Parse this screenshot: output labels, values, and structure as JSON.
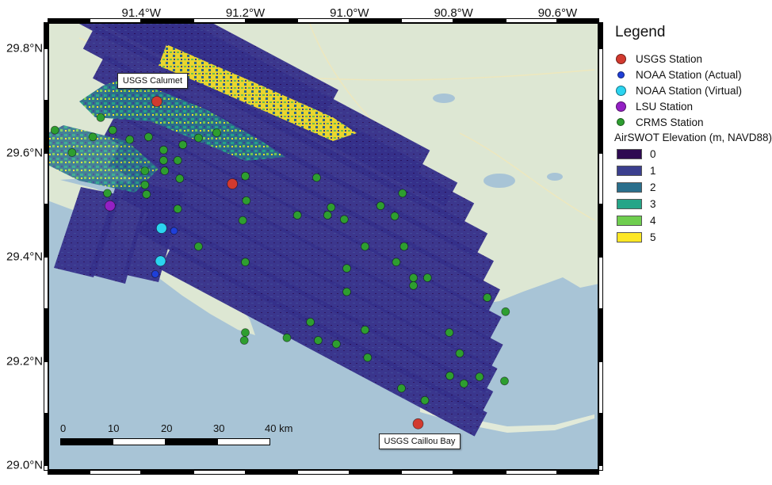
{
  "map": {
    "lon_labels": [
      {
        "text": "91.4°W",
        "lon": -91.4
      },
      {
        "text": "91.2°W",
        "lon": -91.2
      },
      {
        "text": "91.0°W",
        "lon": -91.0
      },
      {
        "text": "90.8°W",
        "lon": -90.8
      },
      {
        "text": "90.6°W",
        "lon": -90.6
      }
    ],
    "lat_labels": [
      {
        "text": "29.8°N",
        "lat": 29.8
      },
      {
        "text": "29.6°N",
        "lat": 29.6
      },
      {
        "text": "29.4°N",
        "lat": 29.4
      },
      {
        "text": "29.2°N",
        "lat": 29.2
      },
      {
        "text": "29.0°N",
        "lat": 29.0
      }
    ],
    "extent": {
      "lon_min": -91.58,
      "lon_max": -90.52,
      "lat_min": 28.99,
      "lat_max": 29.85
    },
    "colors": {
      "water": "#a8c4d6",
      "land": "#dde7d3",
      "frame": "#000000",
      "elevation": [
        "#2e0a52",
        "#3b3f8e",
        "#2a6f8c",
        "#25a588",
        "#6fce4f",
        "#fde725"
      ]
    }
  },
  "legend": {
    "title": "Legend",
    "stations": [
      {
        "label": "USGS Station",
        "color": "#d23a2f",
        "size": 13
      },
      {
        "label": "NOAA Station (Actual)",
        "color": "#1f3fd8",
        "size": 9
      },
      {
        "label": "NOAA Station (Virtual)",
        "color": "#2bd4f0",
        "size": 13
      },
      {
        "label": "LSU Station",
        "color": "#9420c4",
        "size": 13
      },
      {
        "label": "CRMS Station",
        "color": "#2e9e30",
        "size": 10
      }
    ],
    "elevation_title": "AirSWOT Elevation (m, NAVD88)",
    "elevation_classes": [
      {
        "label": "0",
        "color": "#2e0a52"
      },
      {
        "label": "1",
        "color": "#3b3f8e"
      },
      {
        "label": "2",
        "color": "#2a6f8c"
      },
      {
        "label": "3",
        "color": "#25a588"
      },
      {
        "label": "4",
        "color": "#6fce4f"
      },
      {
        "label": "5",
        "color": "#fde725"
      }
    ]
  },
  "labels": {
    "usgs_calumet": {
      "text": "USGS Calumet",
      "lon": -91.37,
      "lat": 29.698
    },
    "usgs_caillou": {
      "text": "USGS Caillou Bay",
      "lon": -90.868,
      "lat": 29.08
    }
  },
  "scalebar": {
    "ticks": [
      "0",
      "10",
      "20",
      "30",
      "40 km"
    ]
  },
  "stations": {
    "usgs": [
      [
        -91.37,
        29.698
      ],
      [
        -91.225,
        29.54
      ],
      [
        -90.868,
        29.08
      ]
    ],
    "noaa_actual": [
      [
        -91.337,
        29.45
      ],
      [
        -91.373,
        29.367
      ]
    ],
    "noaa_virtual": [
      [
        -91.361,
        29.455
      ],
      [
        -91.363,
        29.392
      ]
    ],
    "lsu": [
      [
        -91.46,
        29.498
      ]
    ],
    "crms": [
      [
        -91.566,
        29.643
      ],
      [
        -91.533,
        29.6
      ],
      [
        -91.493,
        29.63
      ],
      [
        -91.478,
        29.667
      ],
      [
        -91.455,
        29.643
      ],
      [
        -91.422,
        29.625
      ],
      [
        -91.386,
        29.63
      ],
      [
        -91.357,
        29.605
      ],
      [
        -91.32,
        29.615
      ],
      [
        -91.29,
        29.628
      ],
      [
        -91.255,
        29.638
      ],
      [
        -91.357,
        29.585
      ],
      [
        -91.33,
        29.585
      ],
      [
        -91.355,
        29.565
      ],
      [
        -91.393,
        29.565
      ],
      [
        -91.393,
        29.538
      ],
      [
        -91.39,
        29.52
      ],
      [
        -91.326,
        29.55
      ],
      [
        -91.465,
        29.522
      ],
      [
        -91.198,
        29.508
      ],
      [
        -91.33,
        29.492
      ],
      [
        -91.205,
        29.47
      ],
      [
        -91.1,
        29.48
      ],
      [
        -91.035,
        29.495
      ],
      [
        -91.042,
        29.48
      ],
      [
        -91.01,
        29.472
      ],
      [
        -90.94,
        29.498
      ],
      [
        -90.913,
        29.478
      ],
      [
        -90.898,
        29.522
      ],
      [
        -91.2,
        29.555
      ],
      [
        -91.063,
        29.552
      ],
      [
        -90.97,
        29.42
      ],
      [
        -90.895,
        29.42
      ],
      [
        -90.91,
        29.39
      ],
      [
        -90.877,
        29.36
      ],
      [
        -90.877,
        29.345
      ],
      [
        -90.85,
        29.36
      ],
      [
        -91.005,
        29.378
      ],
      [
        -91.005,
        29.333
      ],
      [
        -91.2,
        29.39
      ],
      [
        -91.29,
        29.42
      ],
      [
        -90.735,
        29.322
      ],
      [
        -90.7,
        29.295
      ],
      [
        -91.075,
        29.275
      ],
      [
        -90.97,
        29.26
      ],
      [
        -91.2,
        29.255
      ],
      [
        -91.202,
        29.24
      ],
      [
        -91.12,
        29.245
      ],
      [
        -91.06,
        29.24
      ],
      [
        -91.025,
        29.233
      ],
      [
        -90.965,
        29.207
      ],
      [
        -90.808,
        29.255
      ],
      [
        -90.788,
        29.215
      ],
      [
        -90.807,
        29.172
      ],
      [
        -90.78,
        29.157
      ],
      [
        -90.75,
        29.17
      ],
      [
        -90.702,
        29.162
      ],
      [
        -90.9,
        29.148
      ],
      [
        -90.855,
        29.125
      ]
    ]
  },
  "chart_data": {
    "type": "scatter",
    "title": "",
    "xlabel": "",
    "ylabel": "",
    "series": [
      {
        "name": "USGS Station",
        "values": [
          [
            -91.37,
            29.698
          ],
          [
            -91.225,
            29.54
          ],
          [
            -90.868,
            29.08
          ]
        ]
      },
      {
        "name": "NOAA Station (Actual)",
        "values": [
          [
            -91.337,
            29.45
          ],
          [
            -91.373,
            29.367
          ]
        ]
      },
      {
        "name": "NOAA Station (Virtual)",
        "values": [
          [
            -91.361,
            29.455
          ],
          [
            -91.363,
            29.392
          ]
        ]
      },
      {
        "name": "LSU Station",
        "values": [
          [
            -91.46,
            29.498
          ]
        ]
      }
    ],
    "xlim": [
      -91.58,
      -90.52
    ],
    "ylim": [
      28.99,
      29.85
    ],
    "grid": false,
    "legend_position": "right"
  }
}
